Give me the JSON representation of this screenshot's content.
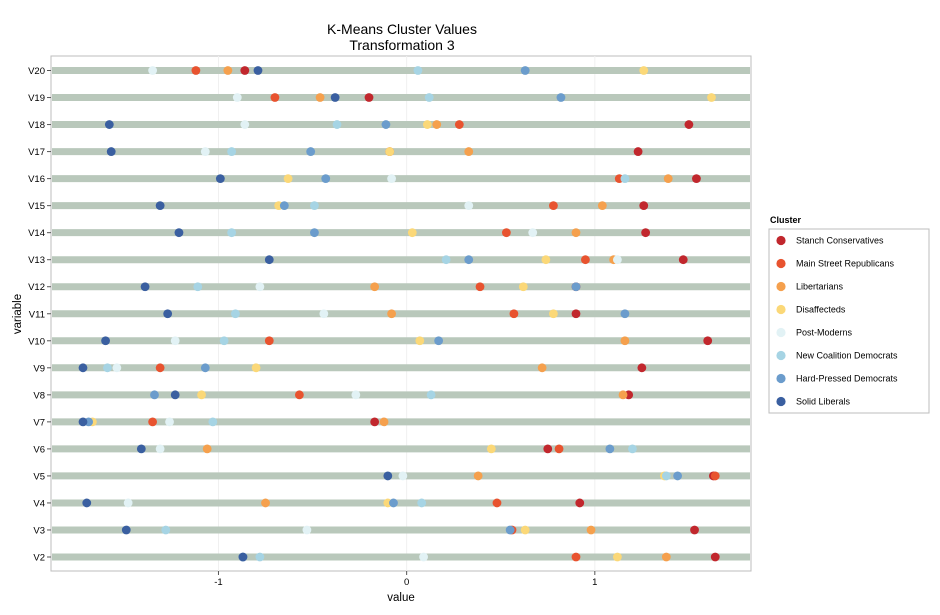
{
  "chart_data": {
    "type": "scatter",
    "title": "K-Means Cluster Values",
    "subtitle": "Transformation 3",
    "xlabel": "value",
    "ylabel": "variable",
    "xlim": [
      -1.89,
      1.83
    ],
    "x_ticks": [
      -1,
      0,
      1
    ],
    "x_tick_labels": [
      "-1",
      "0",
      "1"
    ],
    "grid": true,
    "legend_position": "right",
    "legend_title": "Cluster",
    "variables": [
      "V2",
      "V3",
      "V4",
      "V5",
      "V6",
      "V7",
      "V8",
      "V9",
      "V10",
      "V11",
      "V12",
      "V13",
      "V14",
      "V15",
      "V16",
      "V17",
      "V18",
      "V19",
      "V20"
    ],
    "series": [
      {
        "name": "Stanch Conservatives",
        "color": "#c1272d",
        "values": [
          1.64,
          1.53,
          0.92,
          1.63,
          0.75,
          -0.17,
          1.18,
          1.25,
          1.6,
          0.9,
          0.9,
          1.47,
          1.27,
          1.26,
          1.54,
          1.23,
          1.5,
          -0.2,
          -0.86
        ]
      },
      {
        "name": "Main Street Republicans",
        "color": "#e8532f",
        "values": [
          0.9,
          0.56,
          0.48,
          1.64,
          0.81,
          -1.35,
          -0.57,
          -1.31,
          -0.73,
          0.57,
          0.39,
          0.95,
          0.53,
          0.78,
          1.13,
          -0.09,
          0.28,
          -0.7,
          -1.12
        ]
      },
      {
        "name": "Libertarians",
        "color": "#f5a04d",
        "values": [
          1.38,
          0.98,
          -0.75,
          0.38,
          -1.06,
          -0.12,
          1.15,
          0.72,
          1.16,
          -0.08,
          -0.17,
          1.1,
          0.9,
          1.04,
          1.39,
          0.33,
          0.16,
          -0.46,
          -0.95
        ]
      },
      {
        "name": "Disaffecteds",
        "color": "#fbd878",
        "values": [
          1.12,
          0.63,
          -0.1,
          1.37,
          0.45,
          -1.67,
          -1.09,
          -0.8,
          0.07,
          0.78,
          0.62,
          0.74,
          0.03,
          -0.68,
          -0.63,
          -0.09,
          0.11,
          1.62,
          1.26
        ]
      },
      {
        "name": "Post-Moderns",
        "color": "#e2f2f5",
        "values": [
          0.09,
          -0.53,
          -1.48,
          -0.02,
          -1.31,
          -1.26,
          -0.27,
          -1.54,
          -1.23,
          -0.44,
          -0.78,
          1.12,
          0.67,
          0.33,
          -0.08,
          -1.07,
          -0.86,
          -0.9,
          -1.35
        ]
      },
      {
        "name": "New Coalition Democrats",
        "color": "#a6d4e4",
        "values": [
          -0.78,
          -1.28,
          0.08,
          1.38,
          1.2,
          -1.03,
          0.13,
          -1.59,
          -0.97,
          -0.91,
          -1.11,
          0.21,
          -0.93,
          -0.49,
          1.16,
          -0.93,
          -0.37,
          0.12,
          0.06
        ]
      },
      {
        "name": "Hard-Pressed Democrats",
        "color": "#6b9ccc",
        "values": [
          -0.87,
          0.55,
          -0.07,
          1.44,
          1.08,
          -1.69,
          -1.34,
          -1.07,
          0.17,
          1.16,
          0.9,
          0.33,
          -0.49,
          -0.65,
          -0.43,
          -0.51,
          -0.11,
          0.82,
          0.63
        ]
      },
      {
        "name": "Solid Liberals",
        "color": "#3a5fa0",
        "values": [
          -0.87,
          -1.49,
          -1.7,
          -0.1,
          -1.41,
          -1.72,
          -1.23,
          -1.72,
          -1.6,
          -1.27,
          -1.39,
          -0.73,
          -1.21,
          -1.31,
          -0.99,
          -1.57,
          -1.58,
          -0.38,
          -0.79
        ]
      }
    ]
  }
}
